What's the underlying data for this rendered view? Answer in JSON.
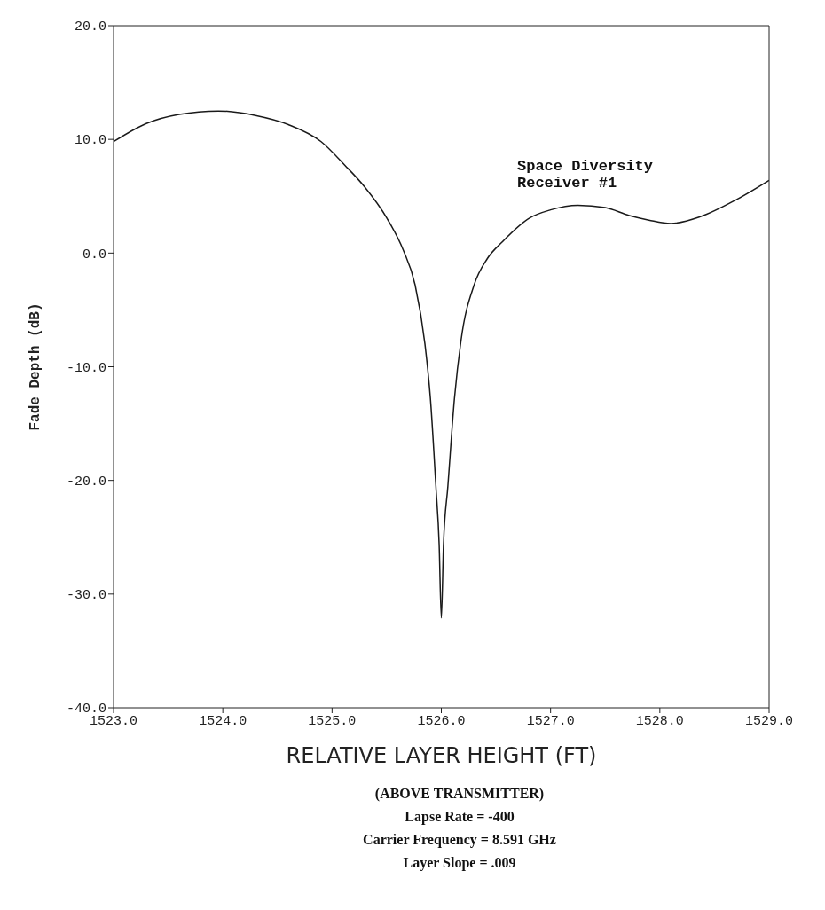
{
  "chart_data": {
    "type": "line",
    "xlabel": "RELATIVE LAYER HEIGHT (FT)",
    "ylabel": "Fade Depth (dB)",
    "x": [
      1523.0,
      1523.3,
      1523.6,
      1523.96,
      1524.3,
      1524.6,
      1524.9,
      1525.12,
      1525.3,
      1525.5,
      1525.65,
      1525.76,
      1525.85,
      1525.9,
      1525.95,
      1525.98,
      1526.0,
      1526.02,
      1526.06,
      1526.12,
      1526.18,
      1526.3,
      1526.42,
      1526.56,
      1526.81,
      1527.0,
      1527.25,
      1527.5,
      1527.72,
      1527.9,
      1528.1,
      1528.37,
      1528.7,
      1529.0
    ],
    "series": [
      {
        "color": "#1a1a1a",
        "values": [
          9.8,
          11.4,
          12.2,
          12.5,
          12.1,
          11.3,
          9.8,
          7.7,
          5.8,
          3.1,
          0.3,
          -2.8,
          -8.0,
          -12.8,
          -20.5,
          -25.6,
          -32.1,
          -25.6,
          -20.5,
          -12.8,
          -7.7,
          -2.8,
          -0.5,
          1.0,
          3.1,
          3.8,
          4.2,
          4.0,
          3.3,
          2.9,
          2.6,
          3.2,
          4.7,
          6.4
        ]
      }
    ],
    "xlim": [
      1523,
      1529
    ],
    "xticks": [
      {
        "value": 1523,
        "label": "1523.0"
      },
      {
        "value": 1524,
        "label": "1524.0"
      },
      {
        "value": 1525,
        "label": "1525.0"
      },
      {
        "value": 1526,
        "label": "1526.0"
      },
      {
        "value": 1527,
        "label": "1527.0"
      },
      {
        "value": 1528,
        "label": "1528.0"
      },
      {
        "value": 1529,
        "label": "1529.0"
      }
    ],
    "ylim": [
      -40,
      20
    ],
    "yticks": [
      {
        "value": -40,
        "label": "-40.0"
      },
      {
        "value": -30,
        "label": "-30.0"
      },
      {
        "value": -20,
        "label": "-20.0"
      },
      {
        "value": -10,
        "label": "-10.0"
      },
      {
        "value": 0,
        "label": "0.0"
      },
      {
        "value": 10,
        "label": "10.0"
      },
      {
        "value": 20,
        "label": "20.0"
      }
    ],
    "grid": false,
    "legend": false,
    "marker": "none",
    "line_style": "solid",
    "annotations": [
      "Space Diversity Receiver #1",
      "(ABOVE TRANSMITTER)",
      "Lapse Rate = -400",
      "Carrier Frequency = 8.591 GHz",
      "Layer Slope = .009"
    ]
  }
}
